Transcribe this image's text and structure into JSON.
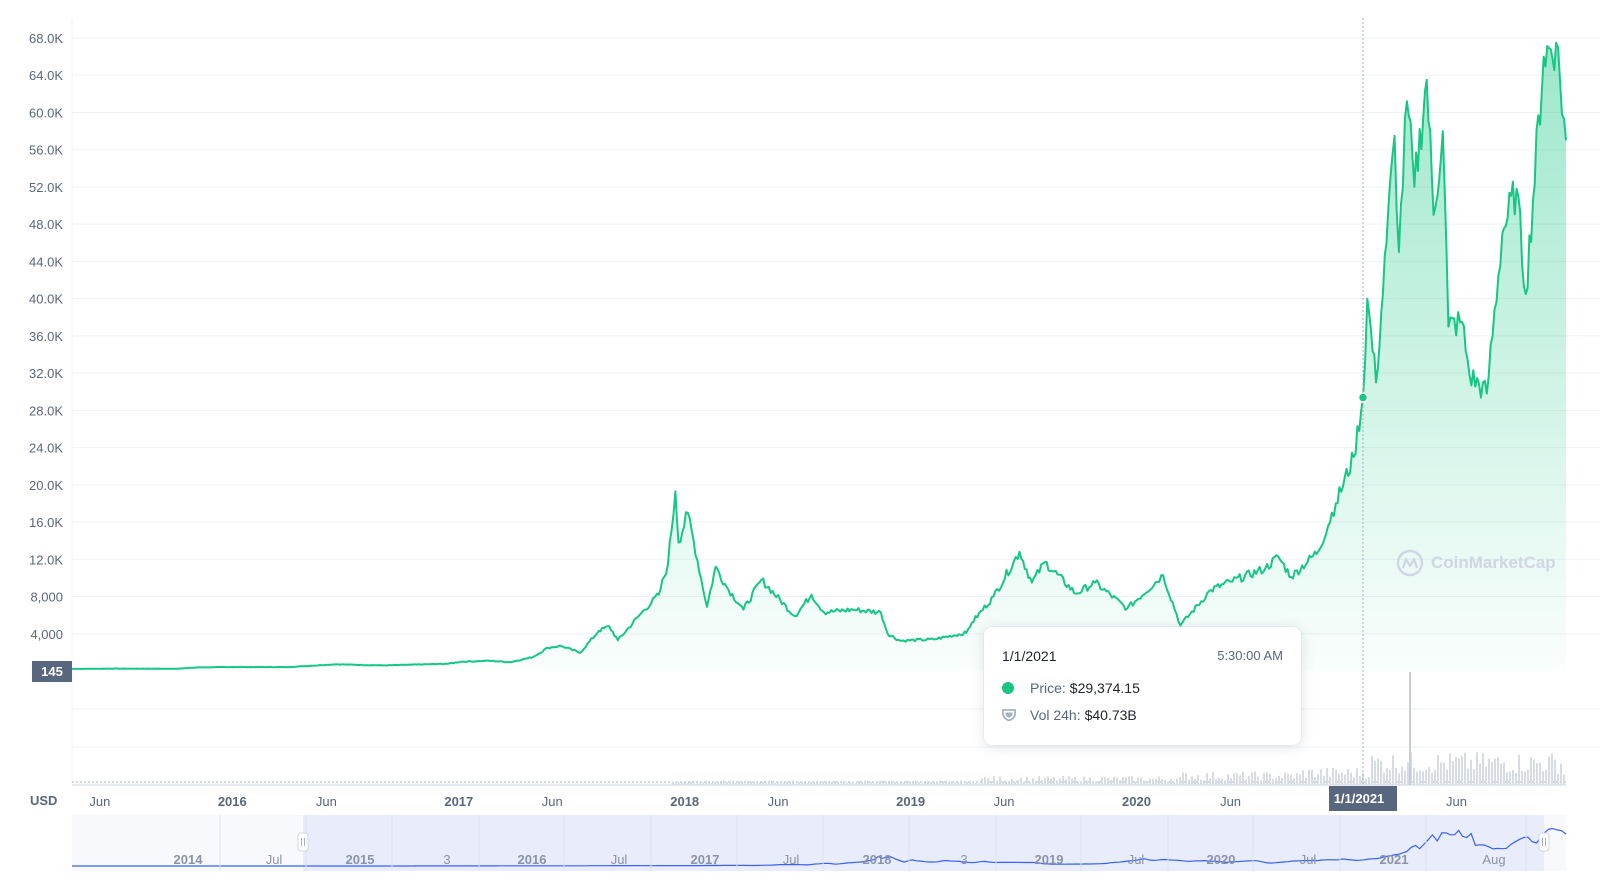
{
  "chart_data": {
    "type": "area",
    "title": "",
    "currency_label": "USD",
    "watermark": "CoinMarketCap",
    "colors": {
      "line": "#16c784",
      "fill": "#16c784",
      "volume": "#d7dbe4",
      "navigator_fill": "#e8ecfb",
      "navigator_line": "#3861fb"
    },
    "y_axis": {
      "range": [
        0,
        68000
      ],
      "ticks": [
        {
          "value": 4000,
          "label": "4,000"
        },
        {
          "value": 8000,
          "label": "8,000"
        },
        {
          "value": 12000,
          "label": "12.0K"
        },
        {
          "value": 16000,
          "label": "16.0K"
        },
        {
          "value": 20000,
          "label": "20.0K"
        },
        {
          "value": 24000,
          "label": "24.0K"
        },
        {
          "value": 28000,
          "label": "28.0K"
        },
        {
          "value": 32000,
          "label": "32.0K"
        },
        {
          "value": 36000,
          "label": "36.0K"
        },
        {
          "value": 40000,
          "label": "40.0K"
        },
        {
          "value": 44000,
          "label": "44.0K"
        },
        {
          "value": 48000,
          "label": "48.0K"
        },
        {
          "value": 52000,
          "label": "52.0K"
        },
        {
          "value": 56000,
          "label": "56.0K"
        },
        {
          "value": 60000,
          "label": "60.0K"
        },
        {
          "value": 64000,
          "label": "64.0K"
        },
        {
          "value": 68000,
          "label": "68.0K"
        }
      ],
      "start_marker": "145"
    },
    "x_axis": {
      "range": [
        "2015-04-17",
        "2021-11-25"
      ],
      "ticks": [
        {
          "date": "2015-06-01",
          "label": "Jun",
          "year": false
        },
        {
          "date": "2016-01-01",
          "label": "2016",
          "year": true
        },
        {
          "date": "2016-06-01",
          "label": "Jun",
          "year": false
        },
        {
          "date": "2017-01-01",
          "label": "2017",
          "year": true
        },
        {
          "date": "2017-06-01",
          "label": "Jun",
          "year": false
        },
        {
          "date": "2018-01-01",
          "label": "2018",
          "year": true
        },
        {
          "date": "2018-06-01",
          "label": "Jun",
          "year": false
        },
        {
          "date": "2019-01-01",
          "label": "2019",
          "year": true
        },
        {
          "date": "2019-06-01",
          "label": "Jun",
          "year": false
        },
        {
          "date": "2020-01-01",
          "label": "2020",
          "year": true
        },
        {
          "date": "2020-06-01",
          "label": "Jun",
          "year": false
        },
        {
          "date": "2021-06-01",
          "label": "Jun",
          "year": false
        }
      ],
      "crosshair": {
        "date": "2021-01-01",
        "label": "1/1/2021"
      }
    },
    "series": [
      {
        "values": [
          [
            "2015-04-17",
            225
          ],
          [
            "2015-07-01",
            260
          ],
          [
            "2015-10-01",
            240
          ],
          [
            "2015-11-05",
            380
          ],
          [
            "2016-01-01",
            430
          ],
          [
            "2016-04-01",
            420
          ],
          [
            "2016-06-15",
            720
          ],
          [
            "2016-09-01",
            600
          ],
          [
            "2016-12-15",
            780
          ],
          [
            "2017-01-05",
            1000
          ],
          [
            "2017-02-20",
            1100
          ],
          [
            "2017-03-25",
            950
          ],
          [
            "2017-05-01",
            1500
          ],
          [
            "2017-05-25",
            2500
          ],
          [
            "2017-06-15",
            2700
          ],
          [
            "2017-07-16",
            1950
          ],
          [
            "2017-08-15",
            4300
          ],
          [
            "2017-09-01",
            4800
          ],
          [
            "2017-09-15",
            3300
          ],
          [
            "2017-10-20",
            6000
          ],
          [
            "2017-11-20",
            8200
          ],
          [
            "2017-12-05",
            11500
          ],
          [
            "2017-12-17",
            19300
          ],
          [
            "2017-12-22",
            13800
          ],
          [
            "2018-01-06",
            17000
          ],
          [
            "2018-02-06",
            6900
          ],
          [
            "2018-02-20",
            11200
          ],
          [
            "2018-03-10",
            9000
          ],
          [
            "2018-04-06",
            6600
          ],
          [
            "2018-05-05",
            9800
          ],
          [
            "2018-06-28",
            5900
          ],
          [
            "2018-07-25",
            8200
          ],
          [
            "2018-08-14",
            6300
          ],
          [
            "2018-09-30",
            6600
          ],
          [
            "2018-11-14",
            6300
          ],
          [
            "2018-11-25",
            4000
          ],
          [
            "2018-12-15",
            3250
          ],
          [
            "2019-02-07",
            3400
          ],
          [
            "2019-04-01",
            4100
          ],
          [
            "2019-04-10",
            5200
          ],
          [
            "2019-05-15",
            8000
          ],
          [
            "2019-06-26",
            12800
          ],
          [
            "2019-07-16",
            9500
          ],
          [
            "2019-08-06",
            11700
          ],
          [
            "2019-09-25",
            8300
          ],
          [
            "2019-10-26",
            9500
          ],
          [
            "2019-12-17",
            6700
          ],
          [
            "2020-02-13",
            10300
          ],
          [
            "2020-03-12",
            4900
          ],
          [
            "2020-04-30",
            8700
          ],
          [
            "2020-06-01",
            9600
          ],
          [
            "2020-07-27",
            11000
          ],
          [
            "2020-08-17",
            12300
          ],
          [
            "2020-09-07",
            10100
          ],
          [
            "2020-10-21",
            12900
          ],
          [
            "2020-11-18",
            18000
          ],
          [
            "2020-12-17",
            23000
          ],
          [
            "2021-01-01",
            29374.15
          ],
          [
            "2021-01-08",
            40000
          ],
          [
            "2021-01-22",
            31000
          ],
          [
            "2021-02-08",
            46000
          ],
          [
            "2021-02-21",
            57500
          ],
          [
            "2021-02-28",
            45000
          ],
          [
            "2021-03-13",
            61200
          ],
          [
            "2021-03-25",
            52000
          ],
          [
            "2021-04-14",
            63500
          ],
          [
            "2021-04-25",
            49000
          ],
          [
            "2021-05-10",
            58000
          ],
          [
            "2021-05-19",
            37000
          ],
          [
            "2021-06-10",
            37500
          ],
          [
            "2021-06-22",
            31800
          ],
          [
            "2021-07-20",
            29800
          ],
          [
            "2021-08-14",
            47000
          ],
          [
            "2021-09-06",
            51800
          ],
          [
            "2021-09-21",
            40500
          ],
          [
            "2021-10-20",
            66000
          ],
          [
            "2021-11-09",
            67500
          ],
          [
            "2021-11-25",
            57000
          ]
        ]
      }
    ],
    "tooltip": {
      "date": "1/1/2021",
      "time": "5:30:00 AM",
      "price_label": "Price:",
      "price_value": "$29,374.15",
      "volume_label": "Vol 24h:",
      "volume_value": "$40.73B"
    },
    "navigator": {
      "selected_range": [
        "2015-04-17",
        "2021-11-25"
      ],
      "ticks": [
        {
          "label": "2014",
          "year": true
        },
        {
          "label": "Jul",
          "year": false
        },
        {
          "label": "2015",
          "year": true
        },
        {
          "label": "3",
          "year": false
        },
        {
          "label": "2016",
          "year": true
        },
        {
          "label": "Jul",
          "year": false
        },
        {
          "label": "2017",
          "year": true
        },
        {
          "label": "Jul",
          "year": false
        },
        {
          "label": "2018",
          "year": true
        },
        {
          "label": "3",
          "year": false
        },
        {
          "label": "2019",
          "year": true
        },
        {
          "label": "Jul",
          "year": false
        },
        {
          "label": "2020",
          "year": true
        },
        {
          "label": "Jul",
          "year": false
        },
        {
          "label": "2021",
          "year": true
        },
        {
          "label": "Aug",
          "year": false
        }
      ]
    }
  }
}
